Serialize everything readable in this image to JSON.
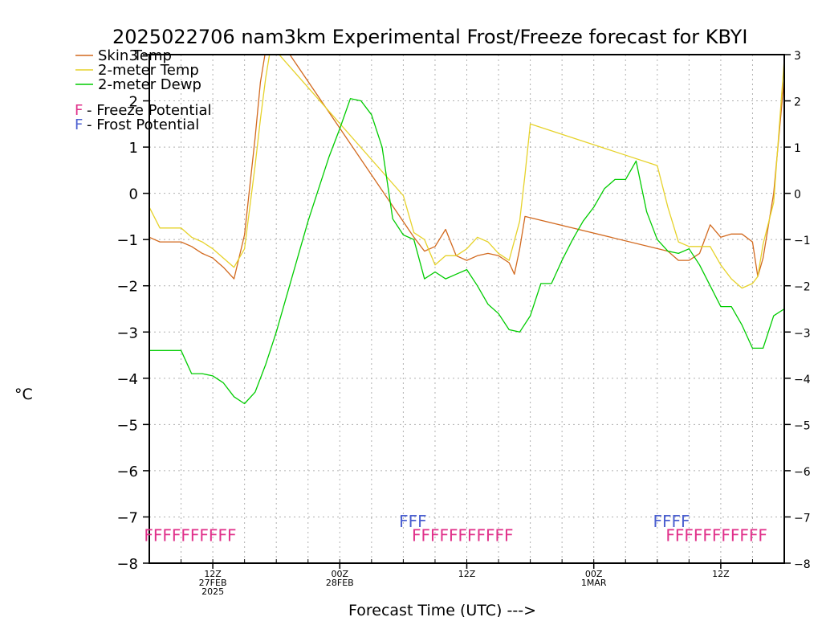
{
  "chart_data": {
    "type": "line",
    "title": "2025022706 nam3km Experimental Frost/Freeze forecast for KBYI",
    "xlabel": "Forecast Time (UTC) --->",
    "ylabel": "°C",
    "ylim": [
      -8,
      3
    ],
    "grid": true,
    "legend_position": "top-left",
    "y_ticks": [
      "3",
      "2",
      "1",
      "0",
      "−1",
      "−2",
      "−3",
      "−4",
      "−5",
      "−6",
      "−7",
      "−8"
    ],
    "y_ticks_right": [
      "3",
      "2",
      "1",
      "0",
      "−1",
      "−2",
      "−3",
      "−4",
      "−5",
      "−6",
      "−7",
      "−8"
    ],
    "x_ticks": [
      {
        "hour": 12,
        "lines": [
          "12Z",
          "27FEB",
          "2025"
        ]
      },
      {
        "hour": 24,
        "lines": [
          "00Z",
          "28FEB"
        ]
      },
      {
        "hour": 36,
        "lines": [
          "12Z"
        ]
      },
      {
        "hour": 48,
        "lines": [
          "00Z",
          "1MAR"
        ]
      },
      {
        "hour": 60,
        "lines": [
          "12Z"
        ]
      }
    ],
    "x_range_hours": [
      6,
      66
    ],
    "x_note": "x values are hours since 00Z 27FEB 2025",
    "legend": [
      {
        "label": "Skin Temp",
        "color": "#d2691e"
      },
      {
        "label": "2-meter Temp",
        "color": "#e6d22a"
      },
      {
        "label": "2-meter Dewp",
        "color": "#00cc00"
      }
    ],
    "flag_legend": [
      {
        "symbol": "F",
        "label": " - Freeze Potential",
        "color": "#e0308a"
      },
      {
        "symbol": "F",
        "label": " - Frost Potential",
        "color": "#4a5fd0"
      }
    ],
    "freeze_flags": [
      {
        "start_hour": 5.5,
        "text": "FFFFFFFFFF",
        "color": "#e0308a"
      },
      {
        "start_hour": 30.8,
        "text": "FFFFFFFFFFF",
        "color": "#e0308a"
      },
      {
        "start_hour": 54.8,
        "text": "FFFFFFFFFFF",
        "color": "#e0308a"
      }
    ],
    "frost_flags": [
      {
        "start_hour": 29.6,
        "text": "FFF",
        "color": "#4a5fd0"
      },
      {
        "start_hour": 53.6,
        "text": "FFFF",
        "color": "#4a5fd0"
      }
    ],
    "series": [
      {
        "name": "Skin Temp",
        "color": "#d2691e",
        "x": [
          6,
          7,
          8,
          9,
          10,
          11,
          12,
          13,
          14,
          15,
          16,
          16.5,
          17,
          17.5,
          31,
          32,
          33,
          34,
          35,
          36,
          37,
          38,
          39,
          40,
          40.5,
          41,
          41.5,
          55,
          56,
          57,
          58,
          59,
          60,
          61,
          62,
          63,
          63.5,
          64,
          65,
          66
        ],
        "y": [
          -0.95,
          -1.05,
          -1.05,
          -1.05,
          -1.15,
          -1.3,
          -1.4,
          -1.6,
          -1.85,
          -0.9,
          1.2,
          2.4,
          3.1,
          3.6,
          -0.95,
          -1.25,
          -1.15,
          -0.78,
          -1.35,
          -1.45,
          -1.35,
          -1.3,
          -1.35,
          -1.5,
          -1.75,
          -1.2,
          -0.5,
          -1.25,
          -1.45,
          -1.45,
          -1.3,
          -0.68,
          -0.95,
          -0.88,
          -0.88,
          -1.05,
          -1.8,
          -1.4,
          0.0,
          2.5
        ]
      },
      {
        "name": "2-meter Temp",
        "color": "#e6d22a",
        "x": [
          6,
          7,
          8,
          9,
          10,
          11,
          12,
          13,
          14,
          15,
          16,
          16.5,
          17,
          17.5,
          30,
          31,
          32,
          33,
          34,
          35,
          36,
          37,
          38,
          39,
          40,
          41,
          41.5,
          42,
          54,
          55,
          56,
          57,
          58,
          59,
          60,
          61,
          62,
          63,
          63.5,
          64,
          65,
          66
        ],
        "y": [
          -0.3,
          -0.75,
          -0.75,
          -0.75,
          -0.95,
          -1.05,
          -1.2,
          -1.4,
          -1.6,
          -1.2,
          0.6,
          1.6,
          2.5,
          3.2,
          -0.05,
          -0.85,
          -1.0,
          -1.55,
          -1.35,
          -1.35,
          -1.2,
          -0.95,
          -1.05,
          -1.3,
          -1.45,
          -0.6,
          0.4,
          1.5,
          0.6,
          -0.3,
          -1.05,
          -1.15,
          -1.15,
          -1.15,
          -1.55,
          -1.85,
          -2.05,
          -1.95,
          -1.8,
          -1.1,
          -0.2,
          2.9
        ]
      },
      {
        "name": "2-meter Dewp",
        "color": "#00cc00",
        "x": [
          6,
          7,
          8,
          9,
          10,
          11,
          12,
          13,
          14,
          15,
          16,
          17,
          18,
          19,
          20,
          21,
          22,
          23,
          24,
          25,
          26,
          27,
          28,
          29,
          30,
          31,
          32,
          33,
          34,
          35,
          36,
          37,
          38,
          39,
          40,
          41,
          42,
          43,
          44,
          45,
          46,
          47,
          48,
          49,
          50,
          51,
          52,
          53,
          54,
          55,
          56,
          57,
          58,
          59,
          60,
          61,
          62,
          63,
          64,
          65,
          66
        ],
        "y": [
          -3.4,
          -3.4,
          -3.4,
          -3.4,
          -3.9,
          -3.9,
          -3.95,
          -4.1,
          -4.4,
          -4.55,
          -4.3,
          -3.7,
          -3.0,
          -2.2,
          -1.4,
          -0.6,
          0.1,
          0.8,
          1.4,
          2.05,
          2.0,
          1.7,
          1.0,
          -0.55,
          -0.9,
          -1.0,
          -1.85,
          -1.7,
          -1.85,
          -1.75,
          -1.65,
          -2.0,
          -2.4,
          -2.6,
          -2.95,
          -3.0,
          -2.65,
          -1.95,
          -1.95,
          -1.45,
          -1.0,
          -0.6,
          -0.3,
          0.1,
          0.3,
          0.3,
          0.7,
          -0.4,
          -1.0,
          -1.25,
          -1.3,
          -1.2,
          -1.55,
          -2.0,
          -2.45,
          -2.45,
          -2.85,
          -3.35,
          -3.35,
          -2.65,
          -2.5
        ]
      }
    ]
  }
}
